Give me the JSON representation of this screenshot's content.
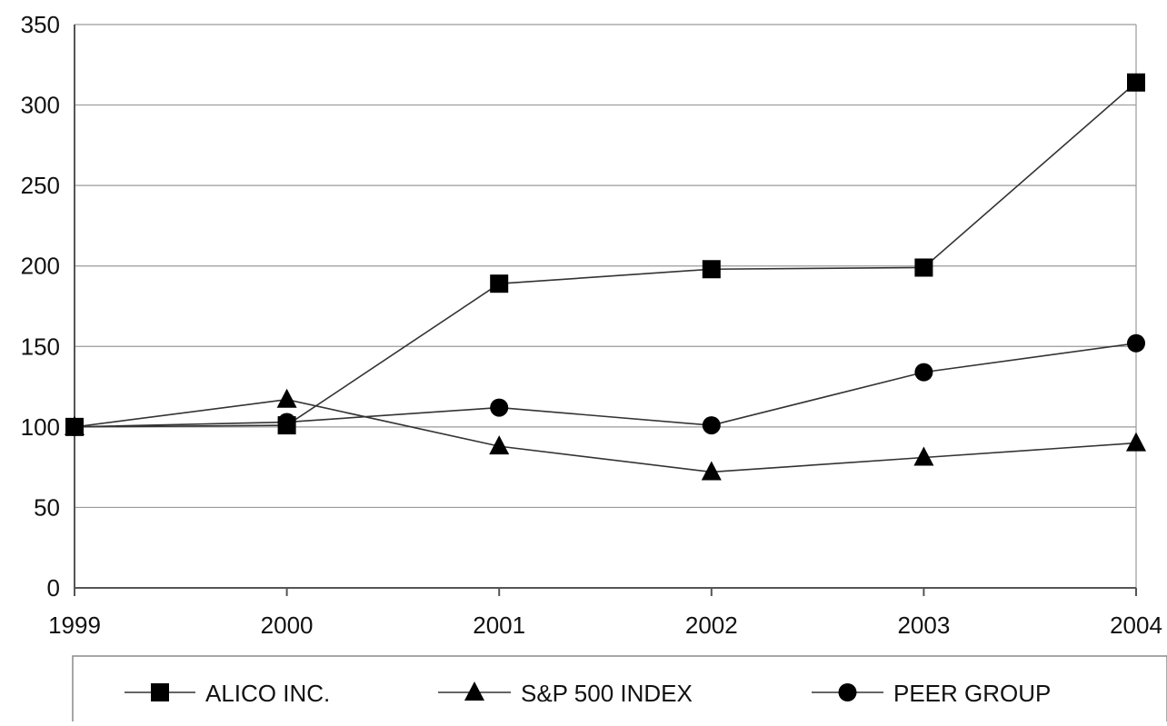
{
  "chart_data": {
    "type": "line",
    "title": "",
    "xlabel": "",
    "ylabel": "",
    "categories": [
      "1999",
      "2000",
      "2001",
      "2002",
      "2003",
      "2004"
    ],
    "yticks": [
      "0",
      "50",
      "100",
      "150",
      "200",
      "250",
      "300",
      "350"
    ],
    "ylim": [
      0,
      350
    ],
    "grid": "horizontal",
    "legend_position": "bottom",
    "series": [
      {
        "name": "ALICO INC.",
        "marker": "square",
        "values": [
          100,
          101,
          189,
          198,
          199,
          314
        ]
      },
      {
        "name": "S&P 500 INDEX",
        "marker": "triangle",
        "values": [
          100,
          117,
          88,
          72,
          81,
          90
        ]
      },
      {
        "name": "PEER GROUP",
        "marker": "circle",
        "values": [
          100,
          103,
          112,
          101,
          134,
          152
        ]
      }
    ],
    "colors": {
      "line": "#333333",
      "marker": "#000000",
      "grid": "#9a9a9a"
    }
  }
}
